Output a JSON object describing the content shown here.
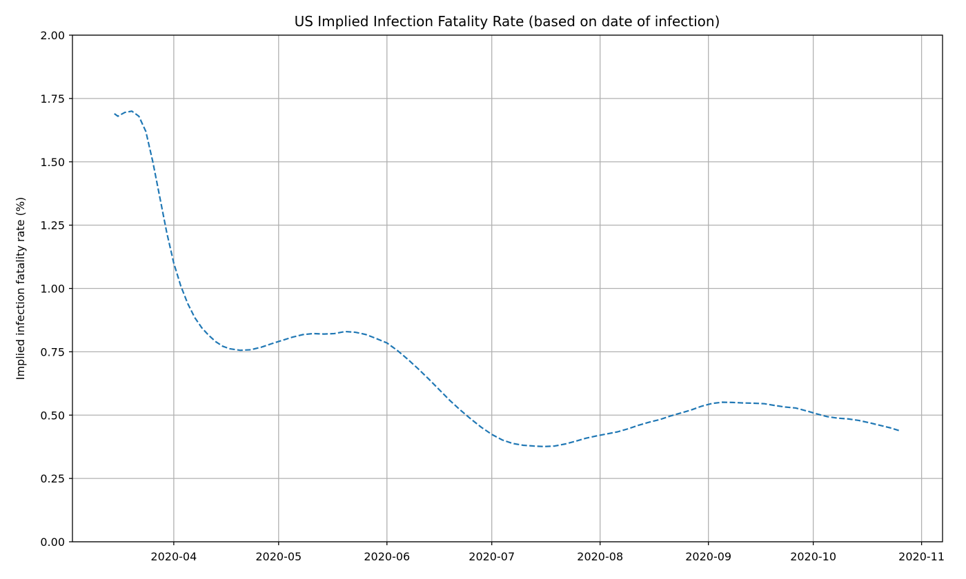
{
  "chart_data": {
    "type": "line",
    "title": "US Implied Infection Fatality Rate (based on date of infection)",
    "xlabel": "",
    "ylabel": "Implied infection fatality rate (%)",
    "xlim": [
      "2020-03-03",
      "2020-11-07"
    ],
    "ylim": [
      0,
      2.0
    ],
    "grid": true,
    "x_ticks": [
      "2020-04-01",
      "2020-05-01",
      "2020-06-01",
      "2020-07-01",
      "2020-08-01",
      "2020-09-01",
      "2020-10-01",
      "2020-11-01"
    ],
    "x_tick_labels": [
      "2020-04",
      "2020-05",
      "2020-06",
      "2020-07",
      "2020-08",
      "2020-09",
      "2020-10",
      "2020-11"
    ],
    "y_ticks": [
      0,
      0.25,
      0.5,
      0.75,
      1.0,
      1.25,
      1.5,
      1.75,
      2.0
    ],
    "y_tick_labels": [
      "0.00",
      "0.25",
      "0.50",
      "0.75",
      "1.00",
      "1.25",
      "1.50",
      "1.75",
      "2.00"
    ],
    "series": [
      {
        "color": "#1f77b4",
        "line_style": "dashed",
        "x": [
          "2020-03-15",
          "2020-03-16",
          "2020-03-18",
          "2020-03-20",
          "2020-03-22",
          "2020-03-24",
          "2020-03-26",
          "2020-03-28",
          "2020-03-30",
          "2020-04-01",
          "2020-04-03",
          "2020-04-05",
          "2020-04-07",
          "2020-04-09",
          "2020-04-11",
          "2020-04-13",
          "2020-04-15",
          "2020-04-17",
          "2020-04-20",
          "2020-04-23",
          "2020-04-26",
          "2020-04-29",
          "2020-05-02",
          "2020-05-05",
          "2020-05-08",
          "2020-05-11",
          "2020-05-14",
          "2020-05-17",
          "2020-05-20",
          "2020-05-23",
          "2020-05-26",
          "2020-05-29",
          "2020-06-01",
          "2020-06-04",
          "2020-06-07",
          "2020-06-10",
          "2020-06-13",
          "2020-06-16",
          "2020-06-19",
          "2020-06-22",
          "2020-06-25",
          "2020-06-28",
          "2020-07-01",
          "2020-07-04",
          "2020-07-07",
          "2020-07-10",
          "2020-07-13",
          "2020-07-16",
          "2020-07-19",
          "2020-07-22",
          "2020-07-25",
          "2020-07-28",
          "2020-07-31",
          "2020-08-03",
          "2020-08-06",
          "2020-08-09",
          "2020-08-12",
          "2020-08-15",
          "2020-08-18",
          "2020-08-21",
          "2020-08-24",
          "2020-08-27",
          "2020-08-30",
          "2020-09-02",
          "2020-09-05",
          "2020-09-08",
          "2020-09-11",
          "2020-09-14",
          "2020-09-17",
          "2020-09-20",
          "2020-09-23",
          "2020-09-26",
          "2020-09-29",
          "2020-10-02",
          "2020-10-05",
          "2020-10-08",
          "2020-10-11",
          "2020-10-14",
          "2020-10-17",
          "2020-10-20",
          "2020-10-23",
          "2020-10-26"
        ],
        "y": [
          1.69,
          1.68,
          1.695,
          1.7,
          1.68,
          1.62,
          1.5,
          1.36,
          1.22,
          1.1,
          1.01,
          0.94,
          0.885,
          0.845,
          0.815,
          0.79,
          0.772,
          0.762,
          0.756,
          0.758,
          0.768,
          0.782,
          0.795,
          0.808,
          0.818,
          0.822,
          0.82,
          0.822,
          0.83,
          0.827,
          0.818,
          0.802,
          0.785,
          0.755,
          0.72,
          0.682,
          0.642,
          0.6,
          0.558,
          0.52,
          0.485,
          0.452,
          0.424,
          0.402,
          0.388,
          0.381,
          0.378,
          0.376,
          0.378,
          0.386,
          0.397,
          0.409,
          0.418,
          0.426,
          0.434,
          0.446,
          0.46,
          0.472,
          0.482,
          0.496,
          0.508,
          0.52,
          0.535,
          0.546,
          0.551,
          0.55,
          0.548,
          0.547,
          0.545,
          0.538,
          0.532,
          0.528,
          0.517,
          0.505,
          0.494,
          0.488,
          0.485,
          0.479,
          0.47,
          0.46,
          0.45,
          0.437
        ]
      }
    ]
  }
}
